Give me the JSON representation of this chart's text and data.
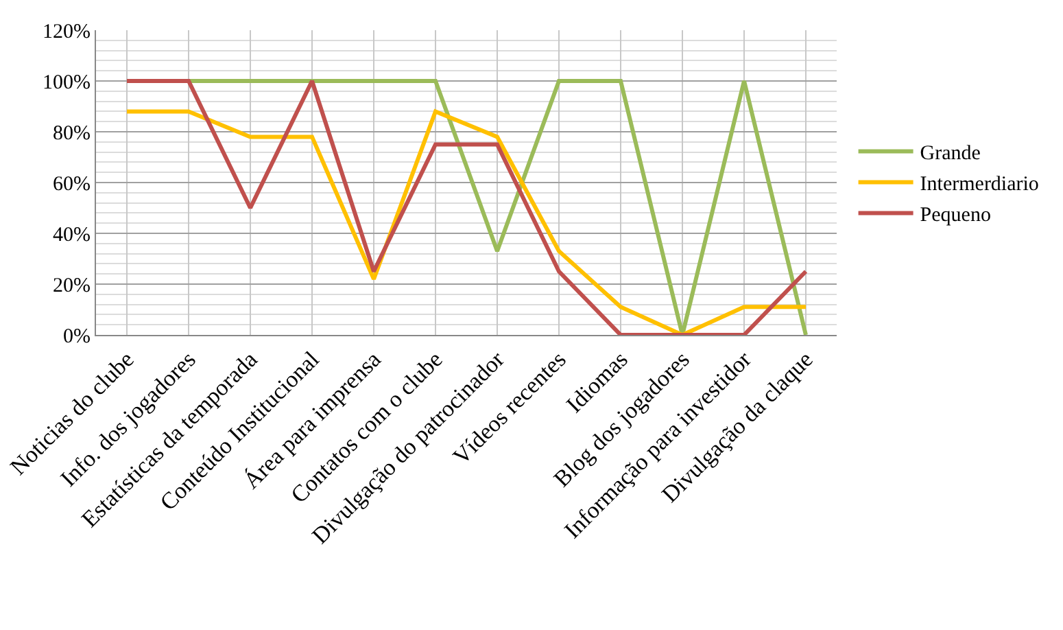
{
  "chart_data": {
    "type": "line",
    "categories": [
      "Noticias do clube",
      "Info. dos jogadores",
      "Estatísticas da temporada",
      "Conteúdo Institucional",
      "Área para imprensa",
      "Contatos com o clube",
      "Divulgação do patrocinador",
      "Vídeos recentes",
      "Idiomas",
      "Blog dos jogadores",
      "Informação para investidor",
      "Divulgação da claque"
    ],
    "series": [
      {
        "name": "Grande",
        "color": "#9bbb59",
        "values": [
          100,
          100,
          100,
          100,
          100,
          100,
          33,
          100,
          100,
          0,
          100,
          0
        ]
      },
      {
        "name": "Intermerdiario",
        "color": "#ffc000",
        "values": [
          88,
          88,
          78,
          78,
          22,
          88,
          78,
          33,
          11,
          0,
          11,
          11
        ]
      },
      {
        "name": "Pequeno",
        "color": "#c0504d",
        "values": [
          100,
          100,
          50,
          100,
          25,
          75,
          75,
          25,
          0,
          0,
          0,
          25
        ]
      }
    ],
    "ylim": [
      0,
      120
    ],
    "yticks": [
      {
        "value": 0,
        "label": "0%"
      },
      {
        "value": 20,
        "label": "20%"
      },
      {
        "value": 40,
        "label": "40%"
      },
      {
        "value": 60,
        "label": "60%"
      },
      {
        "value": 80,
        "label": "80%"
      },
      {
        "value": 100,
        "label": "100%"
      },
      {
        "value": 120,
        "label": "120%"
      }
    ],
    "grid": true,
    "legend": "right",
    "marker": "none",
    "line_style": "solid"
  }
}
